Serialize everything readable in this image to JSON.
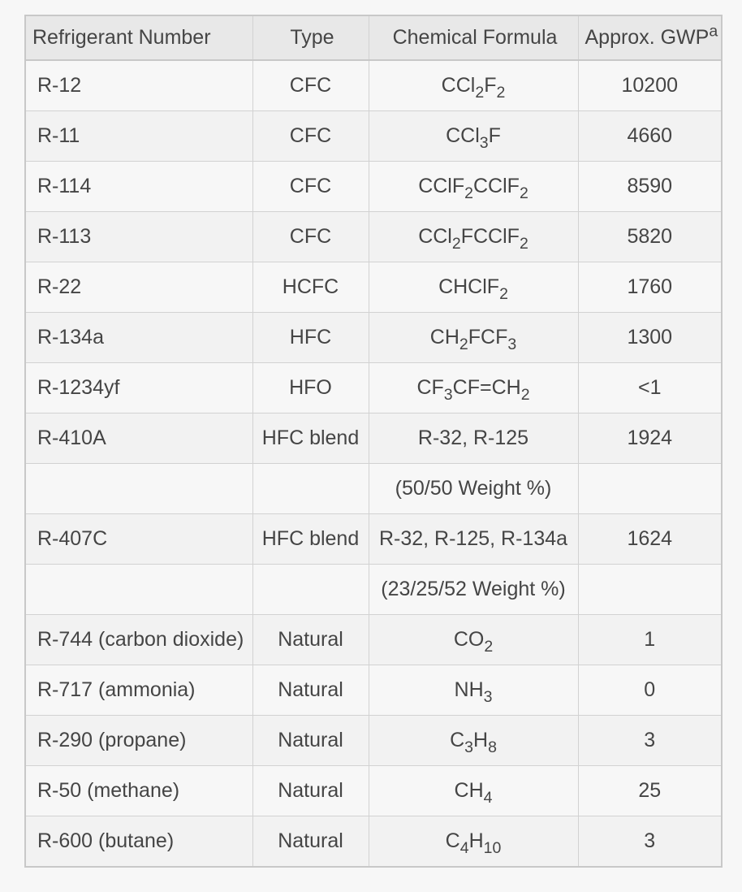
{
  "table": {
    "headers": {
      "number": "Refrigerant Number",
      "type": "Type",
      "formula": "Chemical Formula",
      "gwp": "Approx. GWP",
      "gwp_note": "a"
    },
    "rows": [
      {
        "number": "R-12",
        "type": "CFC",
        "formula": [
          [
            "CCl",
            false
          ],
          [
            "2",
            true
          ],
          [
            "F",
            false
          ],
          [
            "2",
            true
          ]
        ],
        "gwp": "10200"
      },
      {
        "number": "R-11",
        "type": "CFC",
        "formula": [
          [
            "CCl",
            false
          ],
          [
            "3",
            true
          ],
          [
            "F",
            false
          ]
        ],
        "gwp": "4660"
      },
      {
        "number": "R-114",
        "type": "CFC",
        "formula": [
          [
            "CClF",
            false
          ],
          [
            "2",
            true
          ],
          [
            "CClF",
            false
          ],
          [
            "2",
            true
          ]
        ],
        "gwp": "8590"
      },
      {
        "number": "R-113",
        "type": "CFC",
        "formula": [
          [
            "CCl",
            false
          ],
          [
            "2",
            true
          ],
          [
            "FCClF",
            false
          ],
          [
            "2",
            true
          ]
        ],
        "gwp": "5820"
      },
      {
        "number": "R-22",
        "type": "HCFC",
        "formula": [
          [
            "CHClF",
            false
          ],
          [
            "2",
            true
          ]
        ],
        "gwp": "1760"
      },
      {
        "number": "R-134a",
        "type": "HFC",
        "formula": [
          [
            "CH",
            false
          ],
          [
            "2",
            true
          ],
          [
            "FCF",
            false
          ],
          [
            "3",
            true
          ]
        ],
        "gwp": "1300"
      },
      {
        "number": "R-1234yf",
        "type": "HFO",
        "formula": [
          [
            "CF",
            false
          ],
          [
            "3",
            true
          ],
          [
            "CF=CH",
            false
          ],
          [
            "2",
            true
          ]
        ],
        "gwp": "<1"
      },
      {
        "number": "R-410A",
        "type": "HFC blend",
        "formula": [
          [
            "R-32, R-125",
            false
          ]
        ],
        "gwp": "1924"
      },
      {
        "number": "",
        "type": "",
        "formula": [
          [
            "(50/50 Weight %)",
            false
          ]
        ],
        "gwp": ""
      },
      {
        "number": "R-407C",
        "type": "HFC blend",
        "formula": [
          [
            "R-32, R-125, R-134a",
            false
          ]
        ],
        "gwp": "1624"
      },
      {
        "number": "",
        "type": "",
        "formula": [
          [
            "(23/25/52 Weight %)",
            false
          ]
        ],
        "gwp": ""
      },
      {
        "number": "R-744 (carbon dioxide)",
        "type": "Natural",
        "formula": [
          [
            "CO",
            false
          ],
          [
            "2",
            true
          ]
        ],
        "gwp": "1"
      },
      {
        "number": "R-717 (ammonia)",
        "type": "Natural",
        "formula": [
          [
            "NH",
            false
          ],
          [
            "3",
            true
          ]
        ],
        "gwp": "0"
      },
      {
        "number": "R-290 (propane)",
        "type": "Natural",
        "formula": [
          [
            "C",
            false
          ],
          [
            "3",
            true
          ],
          [
            "H",
            false
          ],
          [
            "8",
            true
          ]
        ],
        "gwp": "3"
      },
      {
        "number": "R-50 (methane)",
        "type": "Natural",
        "formula": [
          [
            "CH",
            false
          ],
          [
            "4",
            true
          ]
        ],
        "gwp": "25"
      },
      {
        "number": "R-600 (butane)",
        "type": "Natural",
        "formula": [
          [
            "C",
            false
          ],
          [
            "4",
            true
          ],
          [
            "H",
            false
          ],
          [
            "10",
            true
          ]
        ],
        "gwp": "3"
      }
    ]
  }
}
